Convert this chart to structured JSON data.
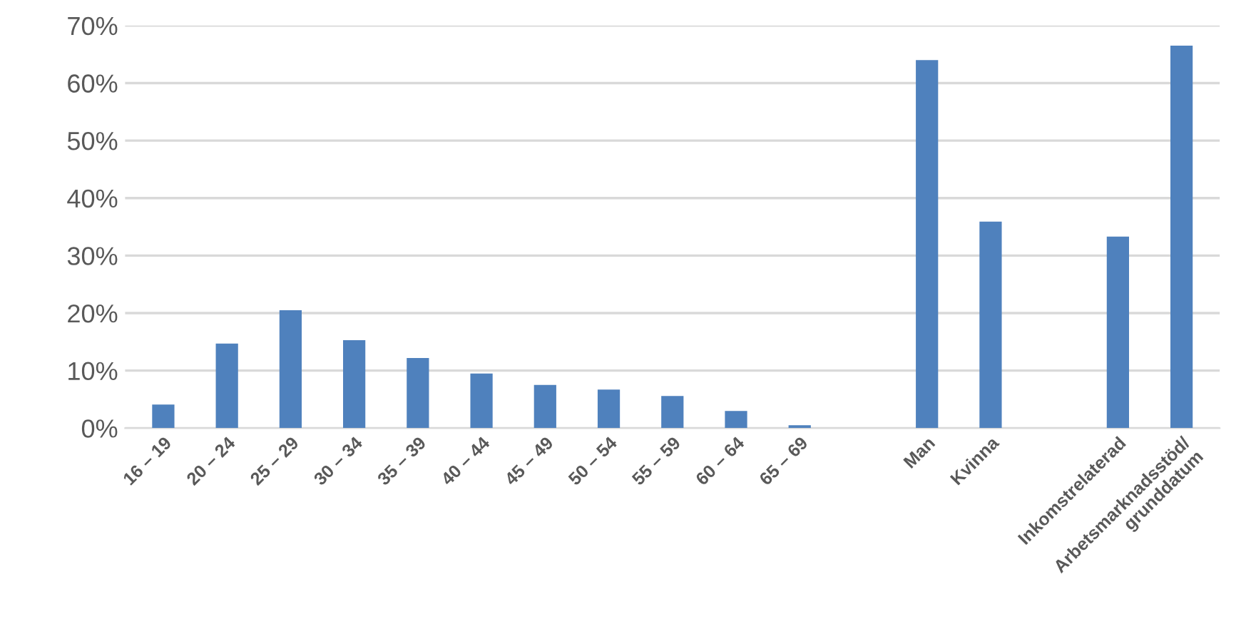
{
  "chart_data": {
    "type": "bar",
    "categories": [
      "16 – 19",
      "20 – 24",
      "25 – 29",
      "30 – 34",
      "35 – 39",
      "40 – 44",
      "45 – 49",
      "50 – 54",
      "55 – 59",
      "60 – 64",
      "65 – 69",
      null,
      "Man",
      "Kvinna",
      null,
      "Inkomstrelaterad",
      "Arbetsmarknadsstöd/\ngrunddatum"
    ],
    "series": [
      {
        "color": "#4f81bd",
        "values": [
          4.1,
          14.7,
          20.5,
          15.3,
          12.2,
          9.5,
          7.5,
          6.7,
          5.6,
          3.0,
          0.5,
          null,
          64.0,
          35.9,
          null,
          33.3,
          66.5
        ]
      }
    ],
    "ylim": [
      0,
      70
    ],
    "yticks": [
      {
        "value": 0,
        "label": "0%"
      },
      {
        "value": 10,
        "label": "10%"
      },
      {
        "value": 20,
        "label": "20%"
      },
      {
        "value": 30,
        "label": "30%"
      },
      {
        "value": 40,
        "label": "40%"
      },
      {
        "value": 50,
        "label": "50%"
      },
      {
        "value": 60,
        "label": "60%"
      },
      {
        "value": 70,
        "label": "70%"
      }
    ],
    "grid": "y",
    "legend": false
  }
}
